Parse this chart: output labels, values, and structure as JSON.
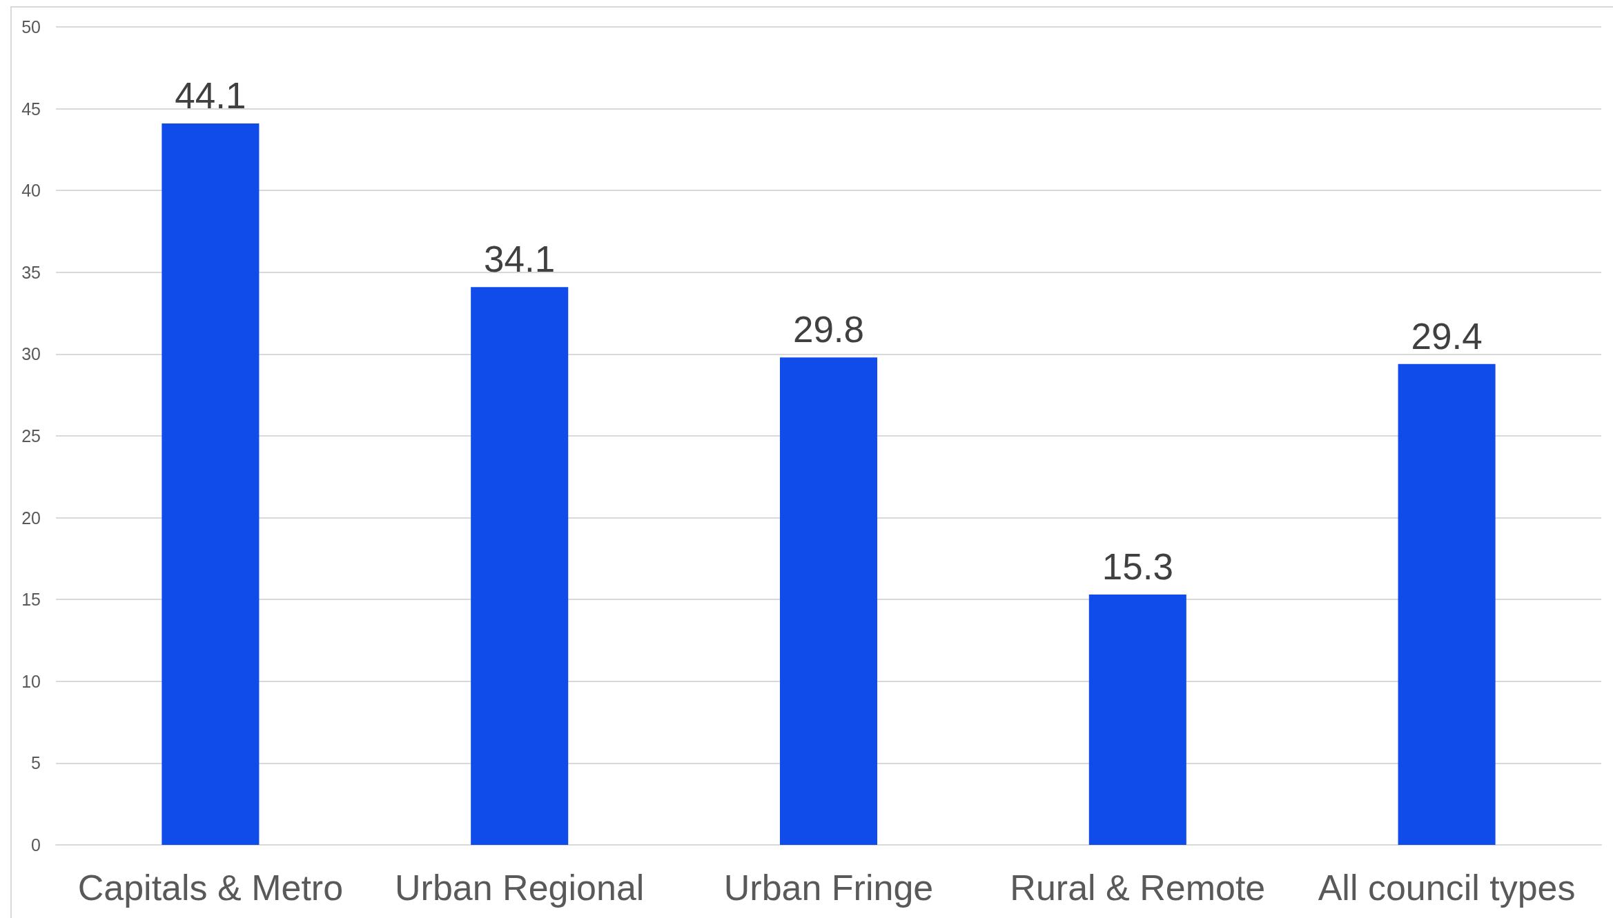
{
  "chart_data": {
    "type": "bar",
    "categories": [
      "Capitals & Metro",
      "Urban Regional",
      "Urban Fringe",
      "Rural & Remote",
      "All council types"
    ],
    "values": [
      44.1,
      34.1,
      29.8,
      15.3,
      29.4
    ],
    "color": "#104ce9",
    "ylim": [
      0,
      50
    ],
    "yticks": [
      0,
      5,
      10,
      15,
      20,
      25,
      30,
      35,
      40,
      45,
      50
    ],
    "grid": "y",
    "data_labels": true
  }
}
